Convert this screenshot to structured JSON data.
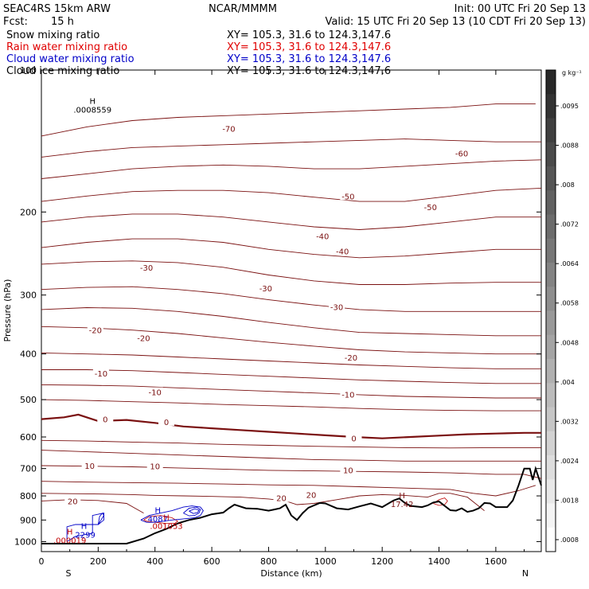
{
  "header": {
    "model": "SEAC4RS 15km ARW",
    "org": "NCAR/MMMM",
    "init": "Init: 00 UTC Fri 20 Sep 13",
    "fcst_label": "Fcst:",
    "fcst_value": "15 h",
    "valid": "Valid: 15 UTC Fri 20 Sep 13 (10 CDT Fri 20 Sep 13)"
  },
  "legend": [
    {
      "name": "Snow mixing ratio",
      "xy": "XY= 105.3, 31.6 to 124.3,147.6",
      "color": "#000000"
    },
    {
      "name": "Rain water mixing ratio",
      "xy": "XY= 105.3, 31.6 to 124.3,147.6",
      "color": "#e00000"
    },
    {
      "name": "Cloud water mixing ratio",
      "xy": "XY= 105.3, 31.6 to 124.3,147.6",
      "color": "#0000c8"
    },
    {
      "name": "Cloud ice mixing ratio",
      "xy": "XY= 105.3, 31.6 to 124.3,147.6",
      "color": "#000000"
    }
  ],
  "colorbar": {
    "unit": "g kg⁻¹",
    "ticks": [
      ".0095",
      ".0088",
      ".008",
      ".0072",
      ".0064",
      ".0058",
      ".0048",
      ".004",
      ".0032",
      ".0024",
      ".0018",
      ".0008"
    ]
  },
  "chart_data": {
    "type": "line",
    "xlabel": "Distance (km)",
    "ylabel": "Pressure (hPa)",
    "xlim": [
      0,
      1760
    ],
    "ylim": [
      1050,
      100
    ],
    "y_log": true,
    "x_ticks": [
      0,
      200,
      400,
      600,
      800,
      1000,
      1200,
      1400,
      1600
    ],
    "y_ticks": [
      200,
      300,
      400,
      500,
      600,
      700,
      800,
      900,
      1000
    ],
    "x_ends": {
      "left": "S",
      "right": "N"
    },
    "y_top_tick_label": "100",
    "colors": {
      "isotherm": "#7a1010",
      "rain": "#c00000",
      "cloud_water": "#0000c8",
      "terrain": "#000000"
    },
    "terrain": {
      "x": [
        0,
        100,
        200,
        300,
        360,
        400,
        440,
        480,
        520,
        560,
        600,
        640,
        660,
        680,
        720,
        760,
        800,
        820,
        840,
        860,
        880,
        900,
        920,
        940,
        980,
        1000,
        1040,
        1080,
        1120,
        1160,
        1200,
        1240,
        1260,
        1280,
        1300,
        1340,
        1360,
        1380,
        1400,
        1420,
        1440,
        1460,
        1480,
        1500,
        1520,
        1540,
        1560,
        1580,
        1600,
        1640,
        1660,
        1680,
        1700,
        1720,
        1730,
        1740,
        1760
      ],
      "y": [
        1010,
        1010,
        1010,
        1010,
        985,
        960,
        940,
        915,
        900,
        890,
        875,
        868,
        850,
        835,
        850,
        852,
        860,
        855,
        850,
        835,
        880,
        900,
        870,
        848,
        828,
        830,
        850,
        855,
        842,
        830,
        845,
        818,
        810,
        828,
        840,
        845,
        838,
        826,
        822,
        840,
        858,
        860,
        850,
        865,
        860,
        850,
        828,
        830,
        845,
        845,
        818,
        760,
        700,
        700,
        740,
        700,
        760
      ]
    },
    "isotherms": [
      {
        "value": -70,
        "x": [
          0,
          160,
          320,
          480,
          640,
          800,
          960,
          1120,
          1280,
          1440,
          1600,
          1700,
          1740
        ],
        "y": [
          138,
          132,
          128,
          126,
          125,
          124,
          123,
          122,
          121,
          120,
          118,
          118,
          118
        ]
      },
      {
        "value": -60,
        "x": [
          0,
          160,
          320,
          480,
          640,
          800,
          960,
          1120,
          1280,
          1440,
          1600,
          1760
        ],
        "y": [
          153,
          149,
          146,
          145,
          144,
          143,
          142,
          141,
          140,
          141,
          142,
          142
        ]
      },
      {
        "value": -60,
        "x": [
          0,
          160,
          320,
          480,
          640,
          800,
          960,
          1120,
          1280,
          1440,
          1600,
          1760
        ],
        "y": [
          170,
          166,
          162,
          160,
          159,
          160,
          162,
          162,
          160,
          158,
          156,
          155
        ]
      },
      {
        "value": -50,
        "x": [
          0,
          160,
          320,
          480,
          640,
          800,
          960,
          1120,
          1280,
          1440,
          1600,
          1760
        ],
        "y": [
          190,
          185,
          181,
          180,
          180,
          182,
          186,
          190,
          190,
          185,
          180,
          178
        ]
      },
      {
        "value": -50,
        "x": [
          0,
          160,
          320,
          480,
          640,
          800,
          960,
          1120,
          1280,
          1440,
          1600,
          1760
        ],
        "y": [
          210,
          205,
          202,
          202,
          205,
          210,
          215,
          218,
          215,
          210,
          205,
          205
        ]
      },
      {
        "value": -40,
        "x": [
          0,
          160,
          320,
          480,
          640,
          800,
          960,
          1120,
          1280,
          1440,
          1600,
          1760
        ],
        "y": [
          238,
          232,
          228,
          228,
          232,
          240,
          246,
          250,
          248,
          244,
          240,
          240
        ]
      },
      {
        "value": -40,
        "x": [
          0,
          160,
          320,
          480,
          640,
          800,
          960,
          1120,
          1280,
          1440,
          1600,
          1760
        ],
        "y": [
          258,
          255,
          254,
          256,
          262,
          272,
          280,
          285,
          285,
          283,
          282,
          282
        ]
      },
      {
        "value": -30,
        "x": [
          0,
          160,
          320,
          480,
          640,
          800,
          960,
          1120,
          1280,
          1440,
          1600,
          1760
        ],
        "y": [
          292,
          289,
          288,
          292,
          298,
          307,
          315,
          322,
          325,
          325,
          325,
          325
        ]
      },
      {
        "value": -30,
        "x": [
          0,
          160,
          320,
          480,
          640,
          800,
          960,
          1120,
          1280,
          1440,
          1600,
          1760
        ],
        "y": [
          322,
          319,
          320,
          325,
          333,
          343,
          352,
          360,
          362,
          364,
          366,
          366
        ]
      },
      {
        "value": -20,
        "x": [
          0,
          160,
          320,
          480,
          640,
          800,
          960,
          1120,
          1280,
          1440,
          1600,
          1760
        ],
        "y": [
          350,
          352,
          356,
          362,
          370,
          378,
          385,
          392,
          396,
          398,
          400,
          400
        ]
      },
      {
        "value": -20,
        "x": [
          0,
          160,
          320,
          480,
          640,
          800,
          960,
          1120,
          1280,
          1440,
          1600,
          1760
        ],
        "y": [
          398,
          400,
          402,
          406,
          410,
          414,
          418,
          422,
          425,
          428,
          430,
          430
        ]
      },
      {
        "value": -10,
        "x": [
          0,
          160,
          320,
          480,
          640,
          800,
          960,
          1120,
          1280,
          1440,
          1600,
          1760
        ],
        "y": [
          432,
          432,
          434,
          438,
          442,
          446,
          450,
          454,
          457,
          460,
          462,
          462
        ]
      },
      {
        "value": -10,
        "x": [
          0,
          160,
          320,
          480,
          640,
          800,
          960,
          1120,
          1280,
          1440,
          1600,
          1760
        ],
        "y": [
          465,
          466,
          468,
          472,
          476,
          480,
          484,
          488,
          492,
          494,
          496,
          496
        ]
      },
      {
        "value": -10,
        "x": [
          0,
          160,
          320,
          480,
          640,
          800,
          960,
          1120,
          1280,
          1440,
          1600,
          1760
        ],
        "y": [
          500,
          502,
          505,
          508,
          512,
          515,
          518,
          522,
          525,
          527,
          528,
          528
        ]
      },
      {
        "value": 0,
        "x": [
          0,
          80,
          130,
          200,
          300,
          400,
          500,
          600,
          700,
          800,
          900,
          1000,
          1100,
          1200,
          1300,
          1400,
          1500,
          1600,
          1700,
          1760
        ],
        "y": [
          550,
          545,
          538,
          555,
          552,
          560,
          570,
          575,
          580,
          585,
          590,
          595,
          600,
          604,
          600,
          596,
          592,
          590,
          588,
          588
        ]
      },
      {
        "value": 0,
        "x": [
          0,
          160,
          320,
          480,
          640,
          800,
          960,
          1120,
          1280,
          1440,
          1600,
          1760
        ],
        "y": [
          610,
          612,
          615,
          618,
          622,
          625,
          628,
          630,
          632,
          633,
          632,
          632
        ]
      },
      {
        "value": 0,
        "x": [
          0,
          160,
          320,
          480,
          640,
          800,
          960,
          1120,
          1280,
          1440,
          1600,
          1760
        ],
        "y": [
          640,
          645,
          650,
          655,
          660,
          665,
          670,
          672,
          675,
          675,
          675,
          675
        ]
      },
      {
        "value": 10,
        "x": [
          0,
          160,
          320,
          480,
          640,
          800,
          960,
          1120,
          1280,
          1440,
          1600,
          1700,
          1760
        ],
        "y": [
          690,
          692,
          694,
          698,
          702,
          706,
          708,
          710,
          712,
          715,
          720,
          720,
          735
        ]
      },
      {
        "value": 10,
        "x": [
          0,
          160,
          320,
          480,
          640,
          800,
          960,
          1120,
          1280,
          1440,
          1520,
          1600,
          1680,
          1740
        ],
        "y": [
          745,
          748,
          750,
          752,
          755,
          758,
          760,
          765,
          770,
          775,
          790,
          800,
          780,
          760
        ]
      },
      {
        "value": 20,
        "x": [
          0,
          160,
          320,
          400,
          500,
          600,
          700,
          800,
          860,
          900,
          960,
          1040,
          1120,
          1200,
          1280,
          1360,
          1400,
          1440,
          1500,
          1560
        ],
        "y": [
          790,
          792,
          795,
          798,
          800,
          802,
          805,
          812,
          820,
          835,
          830,
          815,
          800,
          795,
          798,
          805,
          790,
          790,
          805,
          860
        ]
      },
      {
        "value": 20,
        "x": [
          0,
          100,
          200,
          300,
          360
        ],
        "y": [
          820,
          815,
          818,
          830,
          870
        ]
      }
    ],
    "isotherm_labels": [
      {
        "text": "-70",
        "x": 660,
        "y": 133
      },
      {
        "text": "-60",
        "x": 1480,
        "y": 150
      },
      {
        "text": "-50",
        "x": 1080,
        "y": 185
      },
      {
        "text": "-50",
        "x": 1370,
        "y": 195
      },
      {
        "text": "-40",
        "x": 990,
        "y": 225
      },
      {
        "text": "-40",
        "x": 1060,
        "y": 242
      },
      {
        "text": "-30",
        "x": 370,
        "y": 262
      },
      {
        "text": "-30",
        "x": 790,
        "y": 290
      },
      {
        "text": "-30",
        "x": 1040,
        "y": 318
      },
      {
        "text": "-20",
        "x": 190,
        "y": 356
      },
      {
        "text": "-20",
        "x": 360,
        "y": 370
      },
      {
        "text": "-20",
        "x": 1090,
        "y": 407
      },
      {
        "text": "-10",
        "x": 210,
        "y": 440
      },
      {
        "text": "-10",
        "x": 400,
        "y": 482
      },
      {
        "text": "-10",
        "x": 1080,
        "y": 487
      },
      {
        "text": "0",
        "x": 225,
        "y": 550
      },
      {
        "text": "0",
        "x": 440,
        "y": 557
      },
      {
        "text": "0",
        "x": 1100,
        "y": 604
      },
      {
        "text": "10",
        "x": 170,
        "y": 690
      },
      {
        "text": "10",
        "x": 400,
        "y": 692
      },
      {
        "text": "10",
        "x": 1080,
        "y": 705
      },
      {
        "text": "20",
        "x": 110,
        "y": 820
      },
      {
        "text": "20",
        "x": 845,
        "y": 808
      },
      {
        "text": "20",
        "x": 950,
        "y": 795
      }
    ],
    "cloud_water_contours": [
      {
        "x": [
          90,
          90,
          120,
          200,
          220,
          220,
          200,
          180,
          180,
          120,
          90
        ],
        "y": [
          1000,
          930,
          920,
          920,
          900,
          870,
          875,
          880,
          960,
          975,
          1000
        ]
      },
      {
        "x": [
          200,
          210,
          220,
          215,
          205,
          200
        ],
        "y": [
          920,
          900,
          880,
          870,
          885,
          920
        ]
      },
      {
        "x": [
          350,
          380,
          420,
          460,
          500,
          530,
          560,
          570,
          560,
          540,
          500,
          460,
          430,
          400,
          370,
          350
        ],
        "y": [
          900,
          880,
          870,
          860,
          845,
          840,
          845,
          860,
          880,
          890,
          895,
          900,
          905,
          910,
          910,
          900
        ]
      },
      {
        "x": [
          500,
          520,
          545,
          560,
          555,
          540,
          520,
          500
        ],
        "y": [
          870,
          850,
          845,
          855,
          870,
          880,
          882,
          870
        ]
      },
      {
        "x": [
          520,
          540,
          555,
          550,
          535,
          520
        ],
        "y": [
          862,
          852,
          858,
          868,
          872,
          862
        ]
      }
    ],
    "rain_contours": [
      {
        "x": [
          360,
          380,
          420,
          460,
          480,
          470,
          440,
          400,
          370,
          360
        ],
        "y": [
          900,
          885,
          880,
          890,
          905,
          915,
          915,
          910,
          905,
          900
        ]
      },
      {
        "x": [
          1380,
          1400,
          1420,
          1430,
          1420,
          1400,
          1380
        ],
        "y": [
          830,
          815,
          808,
          820,
          835,
          838,
          830
        ]
      }
    ],
    "annotations": [
      {
        "text": "H",
        "sub": ".0008559",
        "x": 180,
        "y": 118,
        "color": "#000000"
      },
      {
        "text": "H",
        "sub": ".2299",
        "x": 150,
        "y": 940,
        "color": "#0000c8"
      },
      {
        "text": "H",
        "sub": "4087",
        "x": 410,
        "y": 870,
        "color": "#0000c8"
      },
      {
        "text": "H",
        "sub": ".000019",
        "x": 100,
        "y": 965,
        "color": "#c00000"
      },
      {
        "text": "H",
        "sub": ".001053",
        "x": 440,
        "y": 900,
        "color": "#c00000"
      },
      {
        "text": "H",
        "sub": "17.42",
        "x": 1270,
        "y": 810,
        "color": "#7a1010"
      }
    ]
  }
}
